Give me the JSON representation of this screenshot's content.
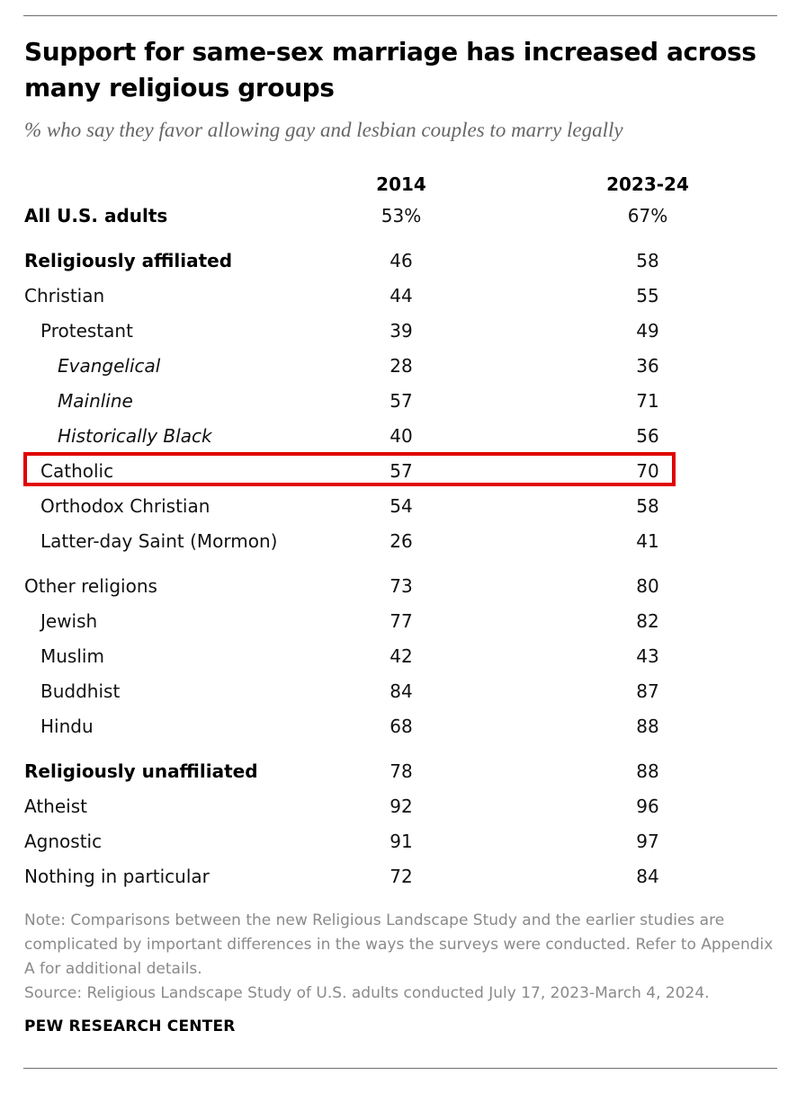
{
  "title": "Support for same-sex marriage has increased across many religious groups",
  "subtitle": "% who say they favor allowing gay and lesbian couples to marry legally",
  "note": "Note: Comparisons between the new Religious Landscape Study and the earlier studies are complicated by important differences in the ways the surveys were conducted. Refer to Appendix A for additional details.",
  "source": "Source: Religious Landscape Study of U.S. adults conducted July 17, 2023-March 4, 2024.",
  "brand": "PEW RESEARCH CENTER",
  "highlight_color": "#e00000",
  "highlighted_row": "Catholic",
  "chart_data": {
    "type": "table",
    "title": "Support for same-sex marriage has increased across many religious groups",
    "subtitle": "% who say they favor allowing gay and lesbian couples to marry legally",
    "columns": [
      "2014",
      "2023-24"
    ],
    "rows": [
      {
        "label": "All U.S. adults",
        "values": [
          "53%",
          "67%"
        ],
        "style": "bold",
        "indent": 0
      },
      {
        "label": "Religiously affiliated",
        "values": [
          "46",
          "58"
        ],
        "style": "bold",
        "indent": 0
      },
      {
        "label": "Christian",
        "values": [
          "44",
          "55"
        ],
        "style": "normal",
        "indent": 0
      },
      {
        "label": "Protestant",
        "values": [
          "39",
          "49"
        ],
        "style": "normal",
        "indent": 1
      },
      {
        "label": "Evangelical",
        "values": [
          "28",
          "36"
        ],
        "style": "italic",
        "indent": 2
      },
      {
        "label": "Mainline",
        "values": [
          "57",
          "71"
        ],
        "style": "italic",
        "indent": 2
      },
      {
        "label": "Historically Black",
        "values": [
          "40",
          "56"
        ],
        "style": "italic",
        "indent": 2
      },
      {
        "label": "Catholic",
        "values": [
          "57",
          "70"
        ],
        "style": "normal",
        "indent": 1
      },
      {
        "label": "Orthodox Christian",
        "values": [
          "54",
          "58"
        ],
        "style": "normal",
        "indent": 1
      },
      {
        "label": "Latter-day Saint (Mormon)",
        "values": [
          "26",
          "41"
        ],
        "style": "normal",
        "indent": 1
      },
      {
        "label": "Other religions",
        "values": [
          "73",
          "80"
        ],
        "style": "normal",
        "indent": 0
      },
      {
        "label": "Jewish",
        "values": [
          "77",
          "82"
        ],
        "style": "normal",
        "indent": 1
      },
      {
        "label": "Muslim",
        "values": [
          "42",
          "43"
        ],
        "style": "normal",
        "indent": 1
      },
      {
        "label": "Buddhist",
        "values": [
          "84",
          "87"
        ],
        "style": "normal",
        "indent": 1
      },
      {
        "label": "Hindu",
        "values": [
          "68",
          "88"
        ],
        "style": "normal",
        "indent": 1
      },
      {
        "label": "Religiously unaffiliated",
        "values": [
          "78",
          "88"
        ],
        "style": "bold",
        "indent": 0
      },
      {
        "label": "Atheist",
        "values": [
          "92",
          "96"
        ],
        "style": "normal",
        "indent": 0
      },
      {
        "label": "Agnostic",
        "values": [
          "91",
          "97"
        ],
        "style": "normal",
        "indent": 0
      },
      {
        "label": "Nothing in particular",
        "values": [
          "72",
          "84"
        ],
        "style": "normal",
        "indent": 0
      }
    ]
  }
}
